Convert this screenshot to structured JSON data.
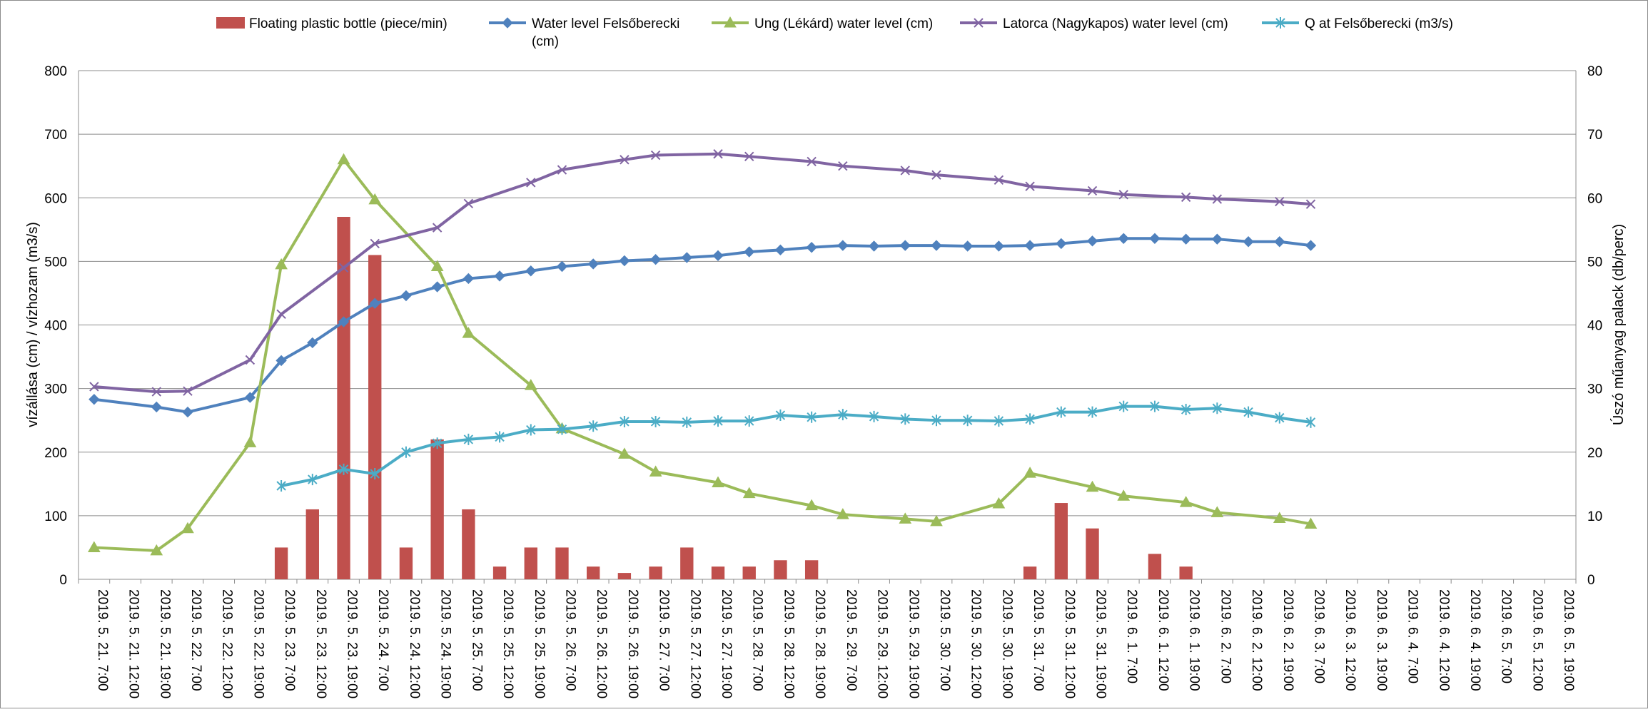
{
  "chart_data": {
    "type": "bar",
    "y_left": {
      "label": "vízállása (cm) / vízhozam (m3/s)",
      "ylim": [
        0,
        800
      ],
      "ticks": [
        "0",
        "100",
        "200",
        "300",
        "400",
        "500",
        "600",
        "700",
        "800"
      ]
    },
    "y_right": {
      "label": "Úszó műanyag palack (db/perc)",
      "ylim": [
        0,
        80
      ],
      "ticks": [
        "0",
        "10",
        "20",
        "30",
        "40",
        "50",
        "60",
        "70",
        "80"
      ]
    },
    "grid": true,
    "legend_position": "top",
    "categories": [
      "2019. 5. 21. 7:00",
      "2019. 5. 21. 12:00",
      "2019. 5. 21. 19:00",
      "2019. 5. 22. 7:00",
      "2019. 5. 22. 12:00",
      "2019. 5. 22. 19:00",
      "2019. 5. 23. 7:00",
      "2019. 5. 23. 12:00",
      "2019. 5. 23. 19:00",
      "2019. 5. 24. 7:00",
      "2019. 5. 24. 12:00",
      "2019. 5. 24. 19:00",
      "2019. 5. 25. 7:00",
      "2019. 5. 25. 12:00",
      "2019. 5. 25. 19:00",
      "2019. 5. 26. 7:00",
      "2019. 5. 26. 12:00",
      "2019. 5. 26. 19:00",
      "2019. 5. 27. 7:00",
      "2019. 5. 27. 12:00",
      "2019. 5. 27. 19:00",
      "2019. 5. 28. 7:00",
      "2019. 5. 28. 12:00",
      "2019. 5. 28. 19:00",
      "2019. 5. 29. 7:00",
      "2019. 5. 29. 12:00",
      "2019. 5. 29. 19:00",
      "2019. 5. 30. 7:00",
      "2019. 5. 30. 12:00",
      "2019. 5. 30. 19:00",
      "2019. 5. 31. 7:00",
      "2019. 5. 31. 12:00",
      "2019. 5. 31. 19:00",
      "2019. 6. 1. 7:00",
      "2019. 6. 1. 12:00",
      "2019. 6. 1. 19:00",
      "2019. 6. 2. 7:00",
      "2019. 6. 2. 12:00",
      "2019. 6. 2. 19:00",
      "2019. 6. 3. 7:00",
      "2019. 6. 3. 12:00",
      "2019. 6. 3. 19:00",
      "2019. 6. 4. 7:00",
      "2019. 6. 4. 12:00",
      "2019. 6. 4. 19:00",
      "2019. 6. 5. 7:00",
      "2019. 6. 5. 12:00",
      "2019. 6. 5. 19:00"
    ],
    "series": [
      {
        "name": "Floating plastic bottle (piece/min)",
        "type": "bar",
        "axis": "right",
        "color": "#C0504D",
        "values": [
          null,
          null,
          null,
          null,
          null,
          null,
          5,
          11,
          57,
          51,
          5,
          22,
          11,
          2,
          5,
          5,
          2,
          1,
          2,
          5,
          2,
          2,
          3,
          3,
          null,
          null,
          null,
          null,
          null,
          null,
          2,
          12,
          8,
          null,
          4,
          2,
          null,
          null,
          null,
          null,
          null,
          null,
          null,
          null,
          null,
          null,
          null,
          null
        ]
      },
      {
        "name": "Water level Felsőberecki (cm)",
        "type": "line",
        "axis": "left",
        "color": "#4F81BD",
        "marker": "diamond",
        "values": [
          283,
          null,
          271,
          263,
          null,
          286,
          344,
          372,
          405,
          434,
          446,
          460,
          473,
          477,
          485,
          492,
          496,
          501,
          503,
          506,
          509,
          515,
          518,
          522,
          525,
          524,
          525,
          525,
          524,
          524,
          525,
          528,
          532,
          536,
          536,
          535,
          535,
          531,
          531,
          525,
          null,
          null,
          null,
          null,
          null,
          null,
          null,
          null
        ]
      },
      {
        "name": "Ung (Lékárd) water level (cm)",
        "type": "line",
        "axis": "left",
        "color": "#9BBB59",
        "marker": "triangle",
        "values": [
          50,
          null,
          45,
          80,
          null,
          215,
          495,
          null,
          660,
          597,
          null,
          492,
          387,
          null,
          305,
          237,
          null,
          197,
          169,
          null,
          152,
          135,
          null,
          116,
          102,
          null,
          95,
          91,
          null,
          119,
          167,
          null,
          145,
          131,
          null,
          121,
          105,
          null,
          96,
          87,
          null,
          null,
          null,
          null,
          null,
          null,
          null,
          null
        ]
      },
      {
        "name": "Latorca (Nagykapos) water level (cm)",
        "type": "line",
        "axis": "left",
        "color": "#8064A2",
        "marker": "x",
        "values": [
          303,
          null,
          295,
          296,
          null,
          345,
          417,
          null,
          490,
          528,
          null,
          553,
          591,
          null,
          624,
          644,
          null,
          660,
          667,
          null,
          669,
          665,
          null,
          657,
          650,
          null,
          643,
          636,
          null,
          628,
          618,
          null,
          611,
          605,
          null,
          601,
          598,
          null,
          594,
          590,
          null,
          null,
          null,
          null,
          null,
          null,
          null,
          null
        ]
      },
      {
        "name": "Q at Felsőberecki (m3/s)",
        "type": "line",
        "axis": "left",
        "color": "#4BACC6",
        "marker": "star",
        "values": [
          null,
          null,
          null,
          null,
          null,
          null,
          147,
          157,
          173,
          166,
          200,
          214,
          220,
          224,
          235,
          236,
          241,
          248,
          248,
          247,
          249,
          249,
          258,
          255,
          259,
          256,
          252,
          250,
          250,
          249,
          252,
          263,
          263,
          272,
          272,
          267,
          269,
          263,
          254,
          247,
          null,
          null,
          null,
          null,
          null,
          null,
          null,
          null
        ]
      }
    ]
  }
}
